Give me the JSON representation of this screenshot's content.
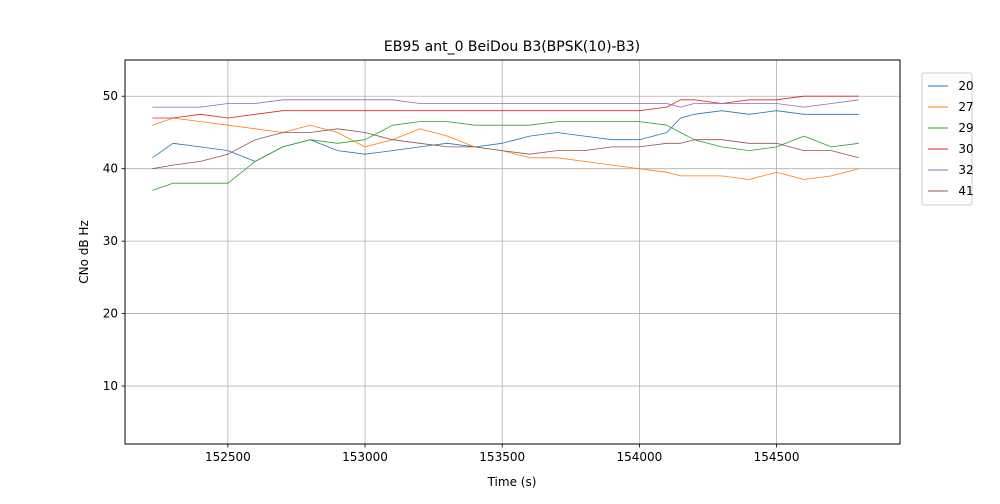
{
  "chart_data": {
    "type": "line",
    "title": "EB95 ant_0 BeiDou B3(BPSK(10)-B3)",
    "xlabel": "Time (s)",
    "ylabel": "CNo dB Hz",
    "xlim": [
      152125,
      154950
    ],
    "ylim": [
      2,
      55
    ],
    "xticks": [
      152500,
      153000,
      153500,
      154000,
      154500
    ],
    "yticks": [
      10,
      20,
      30,
      40,
      50
    ],
    "grid": true,
    "legend_position": "upper right, outside plot",
    "series": [
      {
        "name": "20",
        "color": "#1f77b4",
        "x": [
          152225,
          152300,
          152400,
          152500,
          152600,
          152700,
          152800,
          152900,
          153000,
          153100,
          153200,
          153300,
          153400,
          153500,
          153600,
          153700,
          153800,
          153900,
          154000,
          154100,
          154150,
          154200,
          154300,
          154400,
          154500,
          154600,
          154700,
          154800
        ],
        "y": [
          41.5,
          43.5,
          43,
          42.5,
          41,
          43,
          44,
          42.5,
          42,
          42.5,
          43,
          43.5,
          43,
          43.5,
          44.5,
          45,
          44.5,
          44,
          44,
          45,
          47,
          47.5,
          48,
          47.5,
          48,
          47.5,
          47.5,
          47.5
        ]
      },
      {
        "name": "27",
        "color": "#ff7f0e",
        "x": [
          152225,
          152300,
          152400,
          152500,
          152600,
          152700,
          152800,
          152900,
          153000,
          153100,
          153200,
          153300,
          153400,
          153500,
          153600,
          153700,
          153800,
          153900,
          154000,
          154100,
          154150,
          154200,
          154300,
          154400,
          154500,
          154600,
          154700,
          154800
        ],
        "y": [
          46,
          47,
          46.5,
          46,
          45.5,
          45,
          46,
          45,
          43,
          44,
          45.5,
          44.5,
          43,
          42.5,
          41.5,
          41.5,
          41,
          40.5,
          40,
          39.5,
          39,
          39,
          39,
          38.5,
          39.5,
          38.5,
          39,
          40
        ]
      },
      {
        "name": "29",
        "color": "#2ca02c",
        "x": [
          152225,
          152300,
          152400,
          152500,
          152600,
          152700,
          152800,
          152900,
          153000,
          153100,
          153200,
          153300,
          153400,
          153500,
          153600,
          153700,
          153800,
          153900,
          154000,
          154100,
          154150,
          154200,
          154300,
          154400,
          154500,
          154600,
          154700,
          154800
        ],
        "y": [
          37,
          38,
          38,
          38,
          41,
          43,
          44,
          43.5,
          44,
          46,
          46.5,
          46.5,
          46,
          46,
          46,
          46.5,
          46.5,
          46.5,
          46.5,
          46,
          45,
          44,
          43,
          42.5,
          43,
          44.5,
          43,
          43.5
        ]
      },
      {
        "name": "30",
        "color": "#d62728",
        "x": [
          152225,
          152300,
          152400,
          152500,
          152600,
          152700,
          152800,
          152900,
          153000,
          153100,
          153200,
          153300,
          153400,
          153500,
          153600,
          153700,
          153800,
          153900,
          154000,
          154100,
          154150,
          154200,
          154300,
          154400,
          154500,
          154600,
          154700,
          154800
        ],
        "y": [
          47,
          47,
          47.5,
          47,
          47.5,
          48,
          48,
          48,
          48,
          48,
          48,
          48,
          48,
          48,
          48,
          48,
          48,
          48,
          48,
          48.5,
          49.5,
          49.5,
          49,
          49.5,
          49.5,
          50,
          50,
          50
        ]
      },
      {
        "name": "32",
        "color": "#9467bd",
        "x": [
          152225,
          152300,
          152400,
          152500,
          152600,
          152700,
          152800,
          152900,
          153000,
          153100,
          153200,
          153300,
          153400,
          153500,
          153600,
          153700,
          153800,
          153900,
          154000,
          154100,
          154150,
          154200,
          154300,
          154400,
          154500,
          154600,
          154700,
          154800
        ],
        "y": [
          48.5,
          48.5,
          48.5,
          49,
          49,
          49.5,
          49.5,
          49.5,
          49.5,
          49.5,
          49,
          49,
          49,
          49,
          49,
          49,
          49,
          49,
          49,
          49,
          48.5,
          49,
          49,
          49,
          49,
          48.5,
          49,
          49.5
        ]
      },
      {
        "name": "41",
        "color": "#8c564b",
        "x": [
          152225,
          152300,
          152400,
          152500,
          152600,
          152700,
          152800,
          152900,
          153000,
          153100,
          153200,
          153300,
          153400,
          153500,
          153600,
          153700,
          153800,
          153900,
          154000,
          154100,
          154150,
          154200,
          154300,
          154400,
          154500,
          154600,
          154700,
          154800
        ],
        "y": [
          40,
          40.5,
          41,
          42,
          44,
          45,
          45,
          45.5,
          45,
          44,
          43.5,
          43,
          43,
          42.5,
          42,
          42.5,
          42.5,
          43,
          43,
          43.5,
          43.5,
          44,
          44,
          43.5,
          43.5,
          42.5,
          42.5,
          41.5
        ]
      }
    ]
  }
}
